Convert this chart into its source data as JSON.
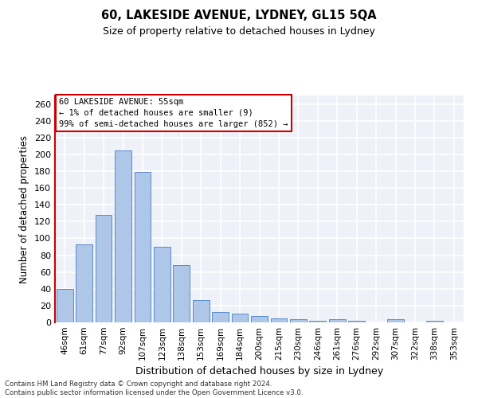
{
  "title": "60, LAKESIDE AVENUE, LYDNEY, GL15 5QA",
  "subtitle": "Size of property relative to detached houses in Lydney",
  "xlabel": "Distribution of detached houses by size in Lydney",
  "ylabel": "Number of detached properties",
  "categories": [
    "46sqm",
    "61sqm",
    "77sqm",
    "92sqm",
    "107sqm",
    "123sqm",
    "138sqm",
    "153sqm",
    "169sqm",
    "184sqm",
    "200sqm",
    "215sqm",
    "230sqm",
    "246sqm",
    "261sqm",
    "276sqm",
    "292sqm",
    "307sqm",
    "322sqm",
    "338sqm",
    "353sqm"
  ],
  "bar_heights": [
    40,
    93,
    128,
    205,
    179,
    90,
    68,
    27,
    12,
    10,
    8,
    5,
    4,
    2,
    4,
    2,
    0,
    4,
    0,
    2,
    0
  ],
  "bar_color": "#aec6e8",
  "bar_edge_color": "#5b8cc8",
  "ylim": [
    0,
    270
  ],
  "yticks": [
    0,
    20,
    40,
    60,
    80,
    100,
    120,
    140,
    160,
    180,
    200,
    220,
    240,
    260
  ],
  "annotation_line1": "60 LAKESIDE AVENUE: 55sqm",
  "annotation_line2": "← 1% of detached houses are smaller (9)",
  "annotation_line3": "99% of semi-detached houses are larger (852) →",
  "annotation_box_color": "#ffffff",
  "annotation_box_edge": "#cc0000",
  "footer_text": "Contains HM Land Registry data © Crown copyright and database right 2024.\nContains public sector information licensed under the Open Government Licence v3.0.",
  "bg_color": "#eef2f8",
  "grid_color": "#ffffff",
  "title_fontsize": 10.5,
  "subtitle_fontsize": 9,
  "bar_width": 0.85
}
